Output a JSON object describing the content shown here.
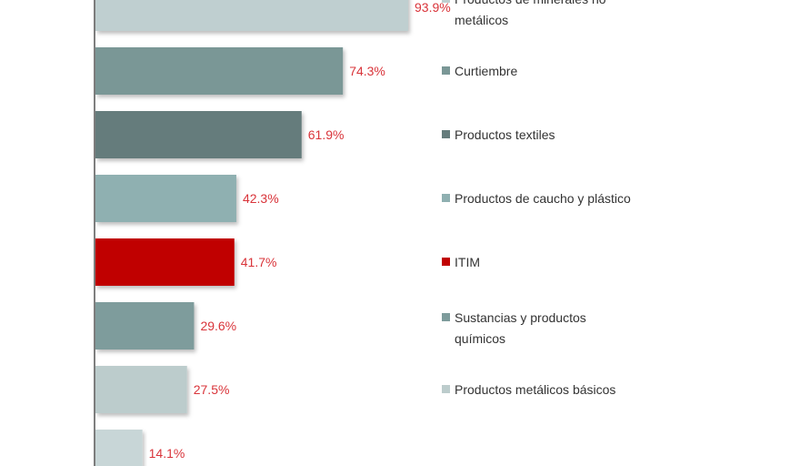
{
  "chart_data": {
    "type": "bar",
    "orientation": "horizontal",
    "xlim": [
      0,
      100
    ],
    "grid": false,
    "legend_position": "right",
    "value_label_color": "#d9343a",
    "categories": [
      "Productos de minerales no metálicos",
      "Curtiembre",
      "Productos  textiles",
      "Productos de caucho y plástico",
      "ITIM",
      "Sustancias y productos químicos",
      "Productos  metálicos  básicos",
      ""
    ],
    "legend_lines": [
      [
        "Productos de minerales no",
        "metálicos"
      ],
      [
        "Curtiembre"
      ],
      [
        "Productos  textiles"
      ],
      [
        "Productos de caucho y plástico"
      ],
      [
        "ITIM"
      ],
      [
        "Sustancias y productos",
        "químicos"
      ],
      [
        "Productos  metálicos  básicos"
      ],
      []
    ],
    "values": [
      93.9,
      74.3,
      61.9,
      42.3,
      41.7,
      29.6,
      27.5,
      14.1
    ],
    "value_labels": [
      "93.9%",
      "74.3%",
      "61.9%",
      "42.3%",
      "41.7%",
      "29.6%",
      "27.5%",
      "14.1%"
    ],
    "colors": [
      "#bfcfd0",
      "#7a9796",
      "#657c7c",
      "#8fb0b1",
      "#c00000",
      "#7e9c9c",
      "#bccccc",
      "#c8d6d7"
    ]
  }
}
